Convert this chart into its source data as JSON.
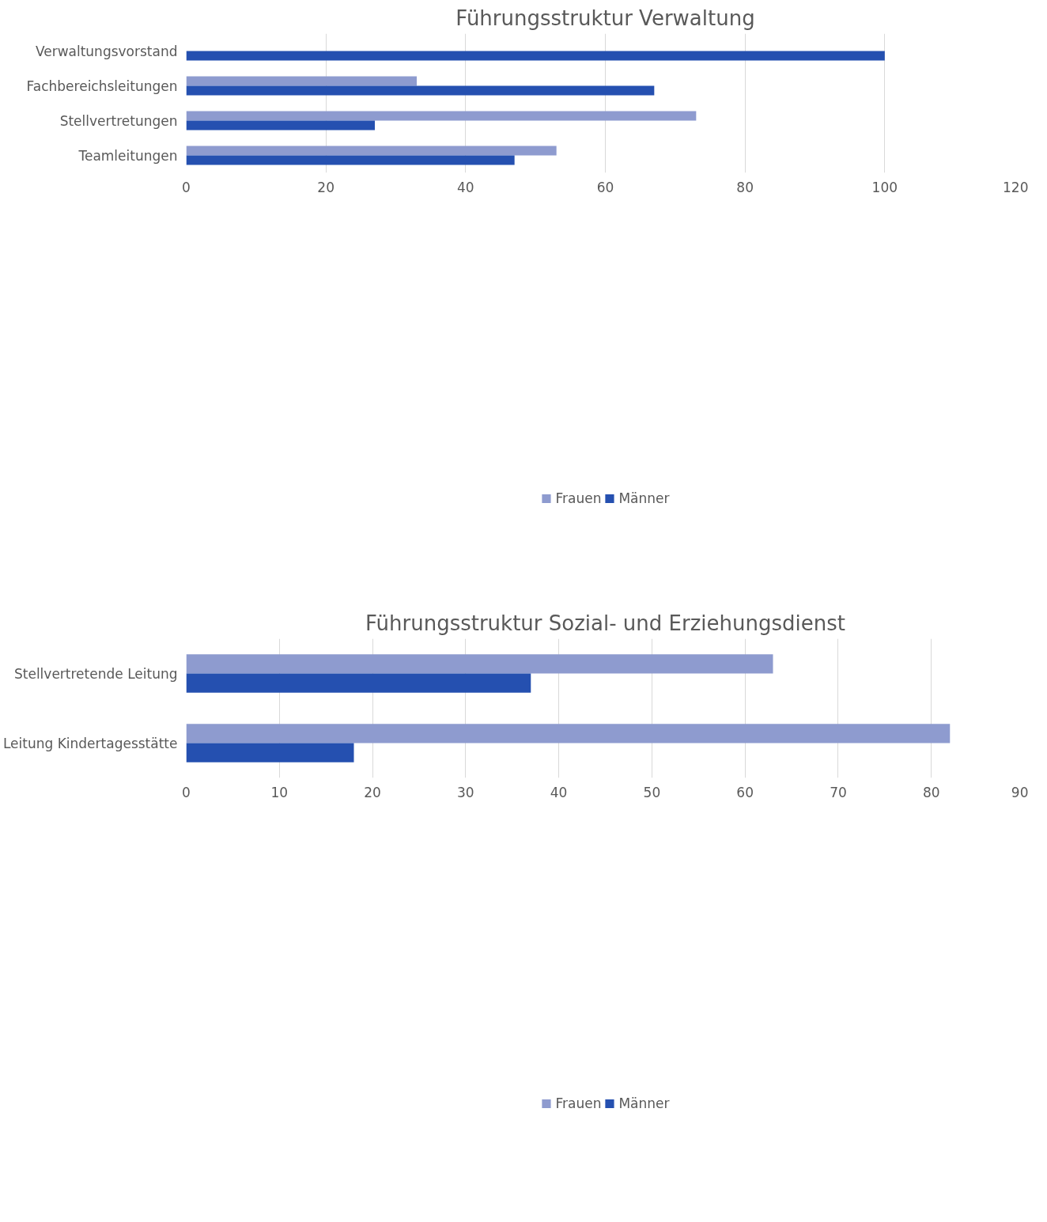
{
  "chart_data": [
    {
      "type": "bar",
      "orientation": "horizontal",
      "title": "Führungsstruktur Verwaltung",
      "categories": [
        "Verwaltungsvorstand",
        "Fachbereichsleitungen",
        "Stellvertretungen",
        "Teamleitungen"
      ],
      "series": [
        {
          "name": "Frauen",
          "color": "#8e9bcf",
          "values": [
            0,
            33,
            73,
            53
          ]
        },
        {
          "name": "Männer",
          "color": "#2550b0",
          "values": [
            100,
            67,
            27,
            47
          ]
        }
      ],
      "xlim": [
        0,
        120
      ],
      "xticks": [
        0,
        20,
        40,
        60,
        80,
        100,
        120
      ],
      "grid": "x",
      "legend": "bottom"
    },
    {
      "type": "bar",
      "orientation": "horizontal",
      "title": "Führungsstruktur Sozial- und Erziehungsdienst",
      "categories": [
        "Stellvertretende Leitung",
        "Leitung Kindertagesstätte"
      ],
      "series": [
        {
          "name": "Frauen",
          "color": "#8e9bcf",
          "values": [
            63,
            82
          ]
        },
        {
          "name": "Männer",
          "color": "#2550b0",
          "values": [
            37,
            18
          ]
        }
      ],
      "xlim": [
        0,
        90
      ],
      "xticks": [
        0,
        10,
        20,
        30,
        40,
        50,
        60,
        70,
        80,
        90
      ],
      "grid": "x",
      "legend": "bottom"
    }
  ]
}
